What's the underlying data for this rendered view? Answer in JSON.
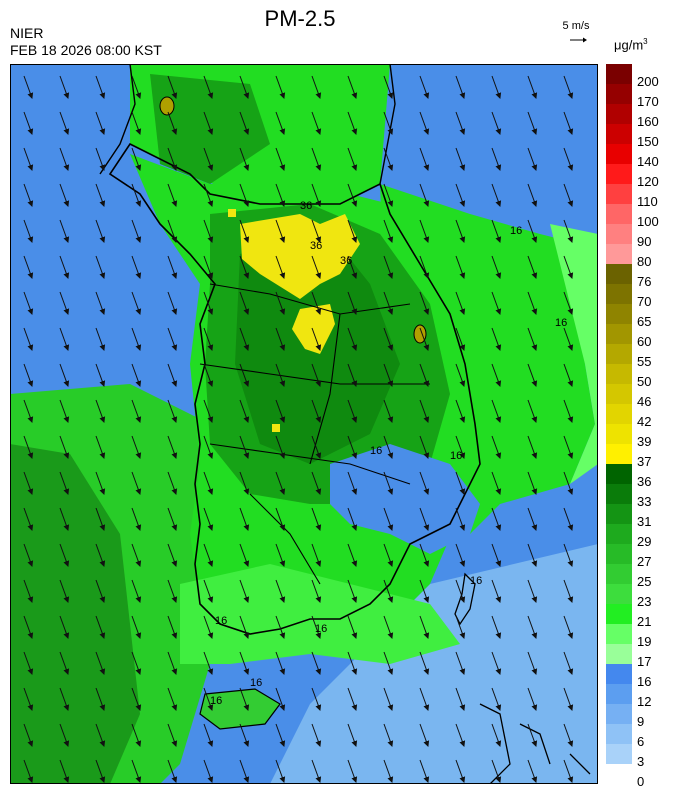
{
  "header": {
    "organization": "NIER",
    "timestamp": "FEB 18 2026 08:00 KST",
    "title": "PM-2.5",
    "wind_reference": "5 m/s",
    "unit_base": "μg/m",
    "unit_exp": "3"
  },
  "legend": {
    "labels": [
      "200",
      "170",
      "160",
      "150",
      "140",
      "120",
      "110",
      "100",
      "90",
      "80",
      "76",
      "70",
      "65",
      "60",
      "55",
      "50",
      "46",
      "42",
      "39",
      "37",
      "36",
      "33",
      "31",
      "29",
      "27",
      "25",
      "23",
      "21",
      "19",
      "17",
      "16",
      "12",
      "9",
      "6",
      "3",
      "0"
    ],
    "colors": [
      "#7a0000",
      "#950000",
      "#b00000",
      "#cc0000",
      "#e80000",
      "#ff1a1a",
      "#ff4040",
      "#ff6666",
      "#ff8080",
      "#ff9999",
      "#6b6200",
      "#7d7300",
      "#8f8400",
      "#a29600",
      "#b4a800",
      "#c6b900",
      "#d4c700",
      "#e2d500",
      "#eee300",
      "#fff000",
      "#006400",
      "#0a7c0a",
      "#149414",
      "#1eaa1e",
      "#27bb27",
      "#32cc32",
      "#3ddd3d",
      "#22ee22",
      "#66ff66",
      "#99ff99",
      "#4488ee",
      "#5c9ef0",
      "#76b0f3",
      "#8fc2f6",
      "#a9d2f9"
    ]
  },
  "map": {
    "region": "Korean Peninsula",
    "contour_labels": [
      "36",
      "36",
      "36",
      "16",
      "16",
      "16",
      "16",
      "16",
      "16",
      "16",
      "16",
      "16"
    ],
    "ocean_color": "#4a8ee8",
    "land_low_color": "#22dd22",
    "land_mid_color": "#16a316",
    "hotspot_color": "#f0e610"
  }
}
